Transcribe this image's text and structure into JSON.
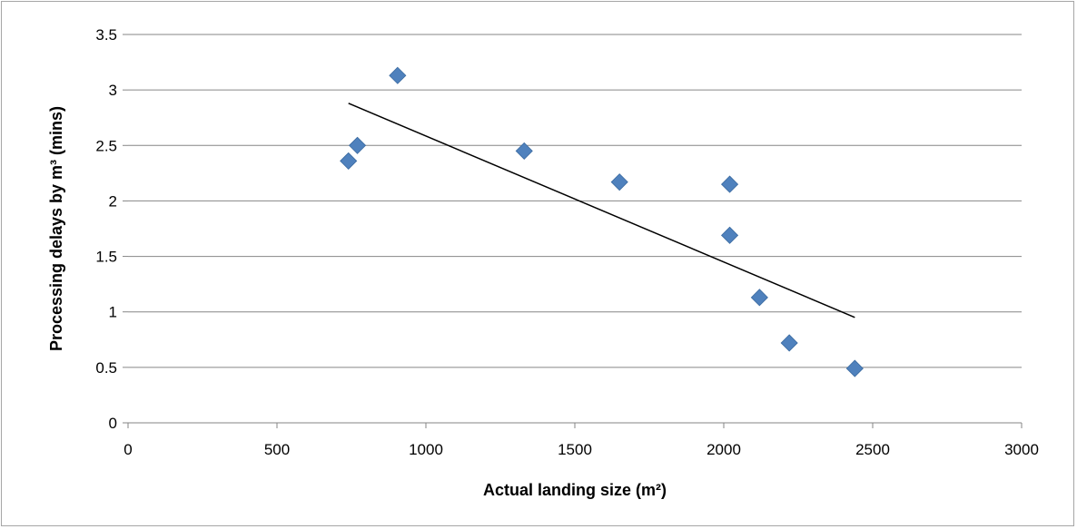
{
  "chart_data": {
    "type": "scatter",
    "title": "",
    "xlabel": "Actual landing size (m²)",
    "ylabel": "Processing delays by m³ (mins)",
    "xlim": [
      0,
      3000
    ],
    "ylim": [
      0,
      3.5
    ],
    "xticks": [
      "0",
      "500",
      "1000",
      "1500",
      "2000",
      "2500",
      "3000"
    ],
    "yticks": [
      "0",
      "0.5",
      "1",
      "1.5",
      "2",
      "2.5",
      "3",
      "3.5"
    ],
    "grid": "horizontal",
    "legend": "none",
    "series": [
      {
        "marker": "diamond",
        "color": "#4f81bd",
        "points": [
          {
            "x": 740,
            "y": 2.36
          },
          {
            "x": 770,
            "y": 2.5
          },
          {
            "x": 905,
            "y": 3.13
          },
          {
            "x": 1330,
            "y": 2.45
          },
          {
            "x": 1650,
            "y": 2.17
          },
          {
            "x": 2020,
            "y": 2.15
          },
          {
            "x": 2020,
            "y": 1.69
          },
          {
            "x": 2120,
            "y": 1.13
          },
          {
            "x": 2220,
            "y": 0.72
          },
          {
            "x": 2440,
            "y": 0.49
          }
        ]
      }
    ],
    "trendline": {
      "type": "linear",
      "from": {
        "x": 740,
        "y": 2.88
      },
      "to": {
        "x": 2440,
        "y": 0.95
      },
      "color": "#000000"
    }
  }
}
